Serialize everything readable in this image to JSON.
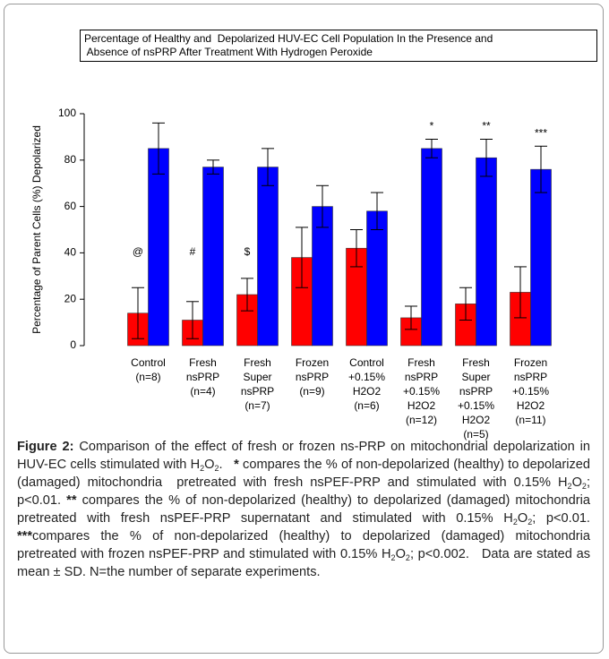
{
  "chart_data": {
    "type": "bar",
    "title": [
      "Percentage of Healthy and  Depolarized HUV-EC Cell Population In the Presence and",
      " Absence of nsPRP After Treatment With Hydrogen Peroxide"
    ],
    "y_label": "Percentage of Parent Cells (%) Depolarized",
    "categories": [
      [
        "Control",
        "(n=8)"
      ],
      [
        "Fresh",
        "nsPRP",
        "(n=4)"
      ],
      [
        "Fresh",
        "Super",
        "nsPRP",
        "(n=7)"
      ],
      [
        "Frozen",
        "nsPRP",
        "(n=9)"
      ],
      [
        "Control",
        "+0.15%",
        "H2O2",
        "(n=6)"
      ],
      [
        "Fresh",
        " nsPRP",
        "+0.15%",
        "H2O2",
        "(n=12)"
      ],
      [
        "Fresh",
        "Super",
        "nsPRP",
        "+0.15%",
        "H2O2",
        "(n=5)"
      ],
      [
        "Frozen",
        "nsPRP",
        "+0.15%",
        "H2O2",
        "(n=11)"
      ]
    ],
    "series": [
      {
        "color": "#ff0000",
        "values": [
          14,
          11,
          22,
          38,
          42,
          12,
          18,
          23
        ],
        "errors": [
          11,
          8,
          7,
          13,
          8,
          5,
          7,
          11
        ],
        "annotations": [
          "@",
          "#",
          "$",
          null,
          null,
          null,
          null,
          null
        ]
      },
      {
        "color": "#0000ff",
        "values": [
          85,
          77,
          77,
          60,
          58,
          85,
          81,
          76
        ],
        "errors": [
          11,
          3,
          8,
          9,
          8,
          4,
          8,
          10
        ],
        "annotations": [
          null,
          null,
          null,
          null,
          null,
          "*",
          "**",
          "***"
        ]
      }
    ],
    "ylim": [
      0,
      100
    ],
    "yticks": [
      0,
      20,
      40,
      60,
      80,
      100
    ],
    "grid": false
  },
  "caption": {
    "runs": [
      {
        "style": "bold",
        "text": "Figure 2:"
      },
      {
        "style": "normal",
        "text": " Comparison of the effect of fresh or frozen ns-PRP on mitochondrial depolarization in HUV-EC cells stimulated with H"
      },
      {
        "style": "sub",
        "text": "2"
      },
      {
        "style": "normal",
        "text": "O"
      },
      {
        "style": "sub",
        "text": "2"
      },
      {
        "style": "normal",
        "text": ".   "
      },
      {
        "style": "bold",
        "text": "*"
      },
      {
        "style": "normal",
        "text": " compares the % of non-depolarized (healthy) to depolarized (damaged) mitochondria  pretreated with fresh nsPEF-PRP and stimulated with 0.15% H"
      },
      {
        "style": "sub",
        "text": "2"
      },
      {
        "style": "normal",
        "text": "O"
      },
      {
        "style": "sub",
        "text": "2"
      },
      {
        "style": "normal",
        "text": "; p<0.01. "
      },
      {
        "style": "bold",
        "text": "**"
      },
      {
        "style": "normal",
        "text": " compares the % of non-depolarized (healthy) to depolarized (damaged) mitochondria pretreated with fresh nsPEF-PRP supernatant and stimulated with 0.15% H"
      },
      {
        "style": "sub",
        "text": "2"
      },
      {
        "style": "normal",
        "text": "O"
      },
      {
        "style": "sub",
        "text": "2"
      },
      {
        "style": "normal",
        "text": "; p<0.01. "
      },
      {
        "style": "bold",
        "text": "***"
      },
      {
        "style": "normal",
        "text": "compares the % of non-depolarized (healthy) to depolarized (damaged) mitochondria  pretreated with frozen nsPEF-PRP and stimulated with 0.15% H"
      },
      {
        "style": "sub",
        "text": "2"
      },
      {
        "style": "normal",
        "text": "O"
      },
      {
        "style": "sub",
        "text": "2"
      },
      {
        "style": "normal",
        "text": "; p<0.002.   Data are stated as mean ± SD. N=the number of separate experiments."
      }
    ]
  }
}
